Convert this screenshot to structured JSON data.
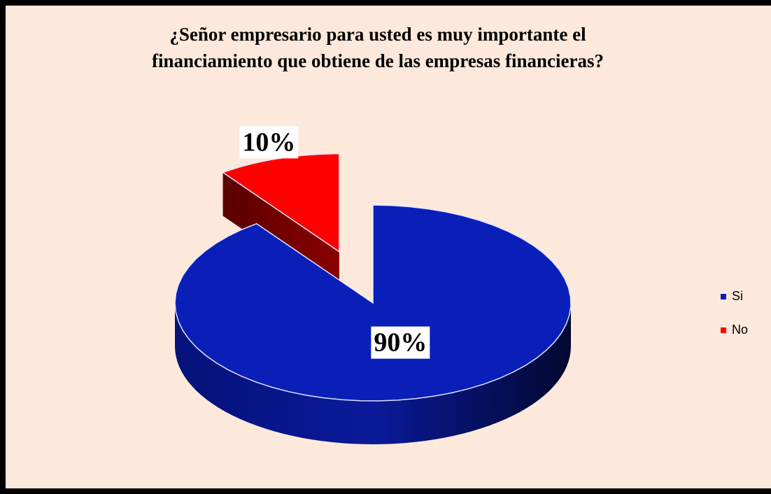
{
  "chart_data": {
    "type": "pie",
    "title": [
      "¿Señor empresario para usted es muy importante el",
      "financiamiento que obtiene de las empresas financieras?"
    ],
    "categories": [
      "Si",
      "No"
    ],
    "values": [
      90,
      10
    ],
    "value_labels": [
      "90%",
      "10%"
    ],
    "colors": [
      "#0a1fb8",
      "#ff0000"
    ],
    "legend": "right"
  }
}
